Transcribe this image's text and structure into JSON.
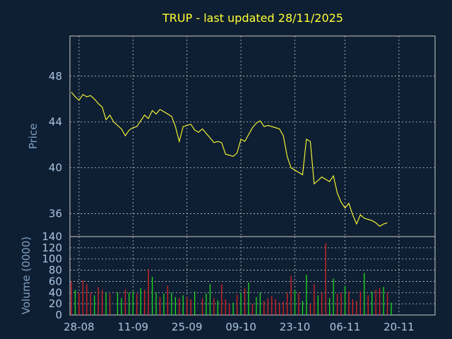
{
  "chart_data": [
    {
      "type": "line",
      "title": "TRUP - last updated 28/11/2025",
      "ylabel": "Price",
      "ylim": [
        34,
        51.5
      ],
      "yticks": [
        36,
        40,
        44,
        48
      ],
      "colors": {
        "line": "#ffff33"
      },
      "grid": true,
      "x": [
        0,
        1,
        2,
        3,
        4,
        5,
        6,
        7,
        8,
        9,
        10,
        11,
        12,
        13,
        14,
        15,
        16,
        17,
        18,
        19,
        20,
        21,
        22,
        23,
        24,
        25,
        26,
        27,
        28,
        29,
        30,
        31,
        32,
        33,
        34,
        35,
        36,
        37,
        38,
        39,
        40,
        41,
        42,
        43,
        44,
        45,
        46,
        47,
        48,
        49,
        50,
        51,
        52,
        53,
        54,
        55,
        56,
        57,
        58,
        59,
        60,
        61,
        62,
        63,
        64,
        65,
        66,
        67,
        68,
        69,
        70,
        71,
        72,
        73,
        74,
        75,
        76,
        77,
        78,
        79,
        80,
        81,
        82,
        83,
        84,
        85,
        86,
        87,
        88,
        89,
        90,
        91,
        92,
        93,
        94
      ],
      "values": [
        46.6,
        46.2,
        45.9,
        46.4,
        46.2,
        46.3,
        46.0,
        45.6,
        45.3,
        44.2,
        44.6,
        44.0,
        43.7,
        43.4,
        42.8,
        43.3,
        43.5,
        43.6,
        44.1,
        44.6,
        44.3,
        45.0,
        44.7,
        45.1,
        44.9,
        44.7,
        44.5,
        43.6,
        42.3,
        43.6,
        43.7,
        43.8,
        43.3,
        43.1,
        43.4,
        43.0,
        42.6,
        42.2,
        42.3,
        42.2,
        41.2,
        41.1,
        41.0,
        41.3,
        42.5,
        42.3,
        42.9,
        43.5,
        43.9,
        44.1,
        43.6,
        43.7,
        43.6,
        43.5,
        43.4,
        42.8,
        41.0,
        40.0,
        39.8,
        39.6,
        39.4,
        42.5,
        42.3,
        38.6,
        38.9,
        39.2,
        39.0,
        38.8,
        39.3,
        37.8,
        37.0,
        36.5,
        36.9,
        35.9,
        35.1,
        35.9,
        35.6,
        35.5,
        35.4,
        35.2,
        34.9,
        35.1,
        35.2,
        null,
        null,
        null,
        null,
        null,
        null,
        null,
        null,
        null,
        null,
        null,
        null
      ],
      "xticks": [
        {
          "label": "28-08",
          "i": 2
        },
        {
          "label": "11-09",
          "i": 16
        },
        {
          "label": "25-09",
          "i": 30
        },
        {
          "label": "09-10",
          "i": 44
        },
        {
          "label": "23-10",
          "i": 58
        },
        {
          "label": "06-11",
          "i": 71
        },
        {
          "label": "20-11",
          "i": 85
        }
      ]
    },
    {
      "type": "bar",
      "ylabel": "Volume (0000)",
      "ylim": [
        0,
        140
      ],
      "yticks": [
        0,
        20,
        40,
        60,
        80,
        100,
        120,
        140
      ],
      "colors": {
        "up": "#22dd22",
        "down": "#dd2222"
      },
      "grid": true,
      "values": [
        60,
        45,
        40,
        62,
        55,
        40,
        35,
        50,
        45,
        40,
        38,
        0,
        40,
        30,
        45,
        40,
        42,
        38,
        48,
        45,
        82,
        68,
        40,
        32,
        38,
        52,
        40,
        32,
        30,
        35,
        32,
        28,
        42,
        0,
        30,
        38,
        55,
        30,
        26,
        55,
        28,
        20,
        22,
        36,
        40,
        48,
        58,
        20,
        32,
        40,
        25,
        30,
        34,
        28,
        22,
        24,
        40,
        70,
        45,
        40,
        25,
        72,
        20,
        55,
        35,
        40,
        128,
        30,
        65,
        38,
        40,
        52,
        42,
        28,
        25,
        42,
        75,
        35,
        42,
        45,
        48,
        50,
        40,
        22
      ],
      "up": [
        0,
        1,
        0,
        0,
        0,
        0,
        1,
        0,
        0,
        1,
        0,
        0,
        1,
        1,
        0,
        1,
        1,
        0,
        1,
        0,
        0,
        1,
        1,
        0,
        1,
        0,
        1,
        1,
        0,
        1,
        0,
        0,
        1,
        0,
        0,
        1,
        1,
        0,
        1,
        0,
        0,
        0,
        1,
        0,
        1,
        0,
        1,
        0,
        1,
        1,
        0,
        0,
        0,
        0,
        0,
        0,
        0,
        0,
        1,
        0,
        1,
        1,
        0,
        0,
        1,
        0,
        0,
        1,
        1,
        0,
        0,
        1,
        0,
        0,
        0,
        0,
        1,
        0,
        1,
        0,
        0,
        1,
        0,
        1
      ],
      "xticks": [
        {
          "label": "28-08",
          "i": 2
        },
        {
          "label": "11-09",
          "i": 16
        },
        {
          "label": "25-09",
          "i": 30
        },
        {
          "label": "09-10",
          "i": 44
        },
        {
          "label": "23-10",
          "i": 58
        },
        {
          "label": "06-11",
          "i": 71
        },
        {
          "label": "20-11",
          "i": 85
        }
      ]
    }
  ]
}
